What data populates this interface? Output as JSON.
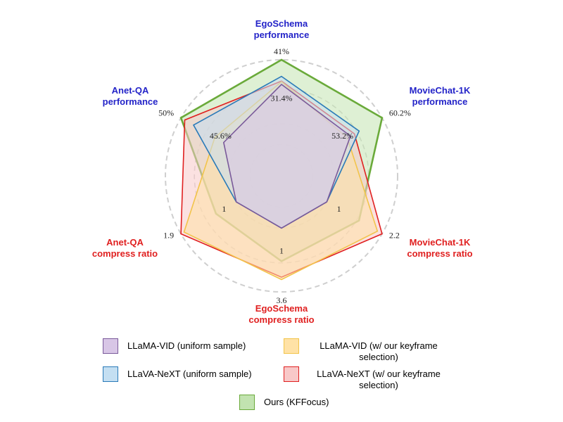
{
  "chart_data": {
    "type": "radar",
    "axes": [
      {
        "title_lines": [
          "EgoSchema",
          "performance"
        ],
        "title_color": "#2323c8",
        "max_label": "41%",
        "min_label": "31.4%",
        "min": 31.4,
        "max": 41,
        "unit": "%"
      },
      {
        "title_lines": [
          "MovieChat-1K",
          "performance"
        ],
        "title_color": "#2323c8",
        "max_label": "60.2%",
        "min_label": "53.2%",
        "min": 53.2,
        "max": 60.2,
        "unit": "%"
      },
      {
        "title_lines": [
          "MovieChat-1K",
          "compress ratio"
        ],
        "title_color": "#e02020",
        "max_label": "2.2",
        "min_label": "1",
        "min": 1,
        "max": 2.2,
        "unit": ""
      },
      {
        "title_lines": [
          "EgoSchema",
          "compress ratio"
        ],
        "title_color": "#e02020",
        "max_label": "3.6",
        "min_label": "1",
        "min": 1,
        "max": 3.6,
        "unit": ""
      },
      {
        "title_lines": [
          "Anet-QA",
          "compress ratio"
        ],
        "title_color": "#e02020",
        "max_label": "1.9",
        "min_label": "1",
        "min": 1,
        "max": 1.9,
        "unit": ""
      },
      {
        "title_lines": [
          "Anet-QA",
          "performance"
        ],
        "title_color": "#2323c8",
        "max_label": "50%",
        "min_label": "45.6%",
        "min": 45.6,
        "max": 50,
        "unit": "%"
      }
    ],
    "series": [
      {
        "name": "LLaMA-VID (uniform sample)",
        "color": "#7a5a9a",
        "fill": "#d8c6e6",
        "values": [
          37.3,
          56.2,
          1,
          1,
          1,
          46.6
        ]
      },
      {
        "name": "LLaMA-VID (w/ our keyframe selection)",
        "color": "#f2c44a",
        "fill": "#ffe2a6",
        "values": [
          37.7,
          55.8,
          2.1,
          3.1,
          1.85,
          47.3
        ]
      },
      {
        "name": "LLaVA-NeXT (uniform sample)",
        "color": "#2a7ab8",
        "fill": "#c4dff2",
        "values": [
          38.5,
          57.3,
          1,
          1,
          1,
          49.0
        ]
      },
      {
        "name": "LLaVA-NeXT (w/ our keyframe selection)",
        "color": "#e02020",
        "fill": "#f8c8c8",
        "values": [
          37.8,
          56.7,
          2.2,
          3.0,
          1.9,
          49.7
        ]
      },
      {
        "name": "Ours (KFFocus)",
        "color": "#6aaa3a",
        "fill": "#c2e3b0",
        "values": [
          41,
          60.2,
          1.7,
          2.35,
          1.33,
          50
        ]
      }
    ],
    "legend_columns": [
      [
        "LLaMA-VID (uniform sample)",
        "LLaVA-NeXT (uniform sample)",
        "Ours (KFFocus)"
      ],
      [
        "LLaMA-VID (w/ our keyframe selection)",
        "LLaVA-NeXT (w/ our keyframe selection)"
      ]
    ],
    "grid": "dashed concentric circles",
    "legend_position": "bottom"
  }
}
